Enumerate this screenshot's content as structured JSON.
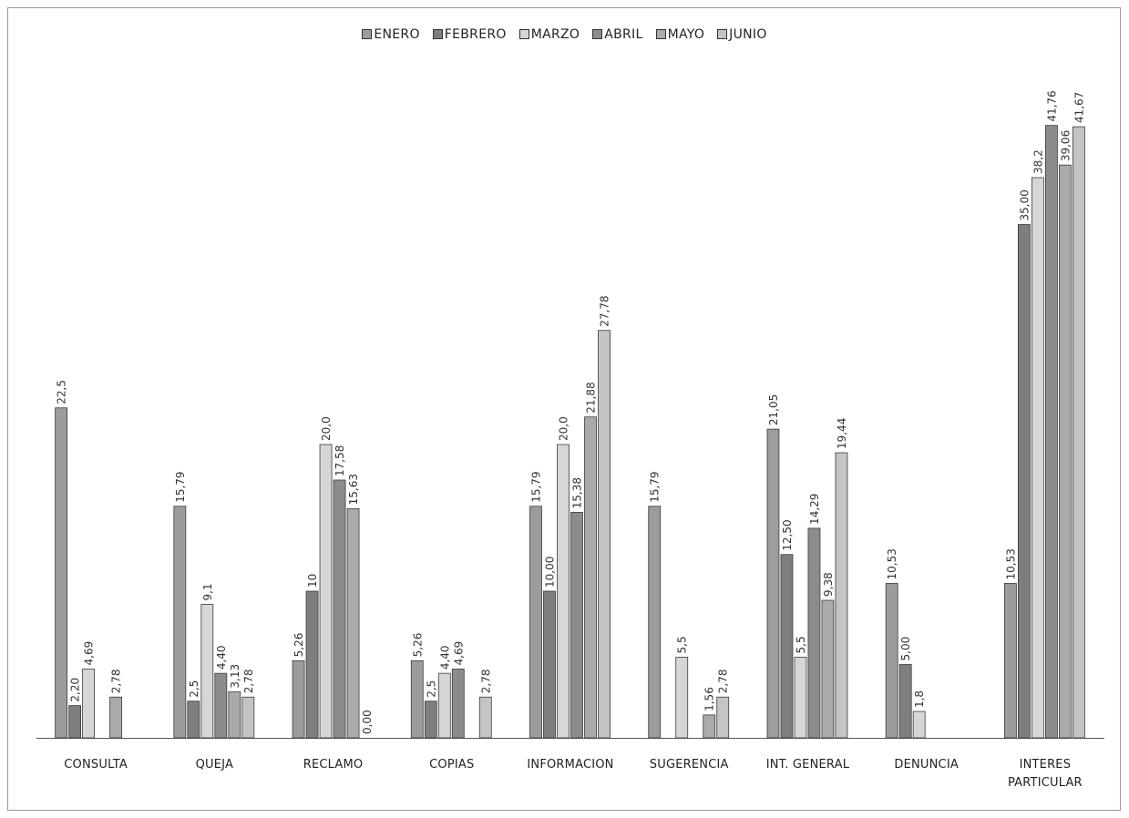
{
  "chart_data": {
    "type": "bar",
    "title": "",
    "xlabel": "",
    "ylabel": "",
    "ylim": [
      0,
      46
    ],
    "grid": false,
    "legend_position": "top-center",
    "categories": [
      "CONSULTA",
      "QUEJA",
      "RECLAMO",
      "COPIAS",
      "INFORMACION",
      "SUGERENCIA",
      "INT. GENERAL",
      "DENUNCIA",
      "INTERES PARTICULAR"
    ],
    "series": [
      {
        "name": "ENERO",
        "color": "#9c9c9c",
        "values": [
          22.5,
          15.79,
          5.26,
          5.26,
          15.79,
          15.79,
          21.05,
          10.53,
          10.53
        ],
        "labels": [
          "22,5",
          "15,79",
          "5,26",
          "5,26",
          "15,79",
          "15,79",
          "21,05",
          "10,53",
          "10,53"
        ]
      },
      {
        "name": "FEBRERO",
        "color": "#7e7e7e",
        "values": [
          2.2,
          2.5,
          10,
          2.5,
          10.0,
          null,
          12.5,
          5.0,
          35.0
        ],
        "labels": [
          "2,20",
          "2,5",
          "10",
          "2,5",
          "10,00",
          "",
          "12,50",
          "5,00",
          "35,00"
        ]
      },
      {
        "name": "MARZO",
        "color": "#d6d6d6",
        "values": [
          4.69,
          9.1,
          20.0,
          4.4,
          20.0,
          5.5,
          5.5,
          1.8,
          38.2
        ],
        "labels": [
          "4,69",
          "9,1",
          "20,0",
          "4,40",
          "20,0",
          "5,5",
          "5,5",
          "1,8",
          "38,2"
        ]
      },
      {
        "name": "ABRIL",
        "color": "#8c8c8c",
        "values": [
          null,
          4.4,
          17.58,
          4.69,
          15.38,
          null,
          14.29,
          null,
          41.76
        ],
        "labels": [
          "",
          "4,40",
          "17,58",
          "4,69",
          "15,38",
          "",
          "14,29",
          "",
          "41,76"
        ]
      },
      {
        "name": "MAYO",
        "color": "#aaaaaa",
        "values": [
          2.78,
          3.13,
          15.63,
          null,
          21.88,
          1.56,
          9.38,
          null,
          39.06
        ],
        "labels": [
          "2,78",
          "3,13",
          "15,63",
          "",
          "21,88",
          "1,56",
          "9,38",
          "",
          "39,06"
        ]
      },
      {
        "name": "JUNIO",
        "color": "#c4c4c4",
        "values": [
          null,
          2.78,
          0.0,
          2.78,
          27.78,
          2.78,
          19.44,
          null,
          41.67
        ],
        "labels": [
          "",
          "2,78",
          "0,00",
          "2,78",
          "27,78",
          "2,78",
          "19,44",
          "",
          "41,67"
        ]
      }
    ]
  }
}
